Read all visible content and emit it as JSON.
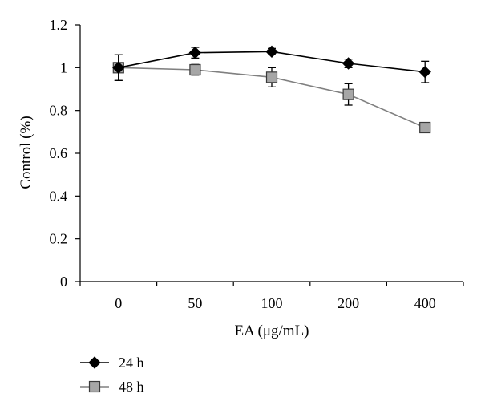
{
  "chart_data": {
    "type": "line",
    "title": "",
    "xlabel": "EA (μg/mL)",
    "ylabel": "Control (%)",
    "categories": [
      "0",
      "50",
      "100",
      "200",
      "400"
    ],
    "ylim": [
      0,
      1.2
    ],
    "yticks": [
      "0",
      "0.2",
      "0.4",
      "0.6",
      "0.8",
      "1",
      "1.2"
    ],
    "grid": false,
    "legend_position": "bottom-left",
    "series": [
      {
        "name": "24 h",
        "marker": "diamond",
        "line_color": "#000000",
        "marker_fill": "#000000",
        "values": [
          1.0,
          1.07,
          1.075,
          1.02,
          0.98
        ],
        "errors": [
          0.06,
          0.025,
          0.015,
          0.02,
          0.05
        ]
      },
      {
        "name": "48 h",
        "marker": "square",
        "line_color": "#808080",
        "marker_fill": "#a6a6a6",
        "values": [
          1.0,
          0.99,
          0.955,
          0.875,
          0.72
        ],
        "errors": [
          0.06,
          0.025,
          0.045,
          0.05,
          0.02
        ]
      }
    ]
  }
}
